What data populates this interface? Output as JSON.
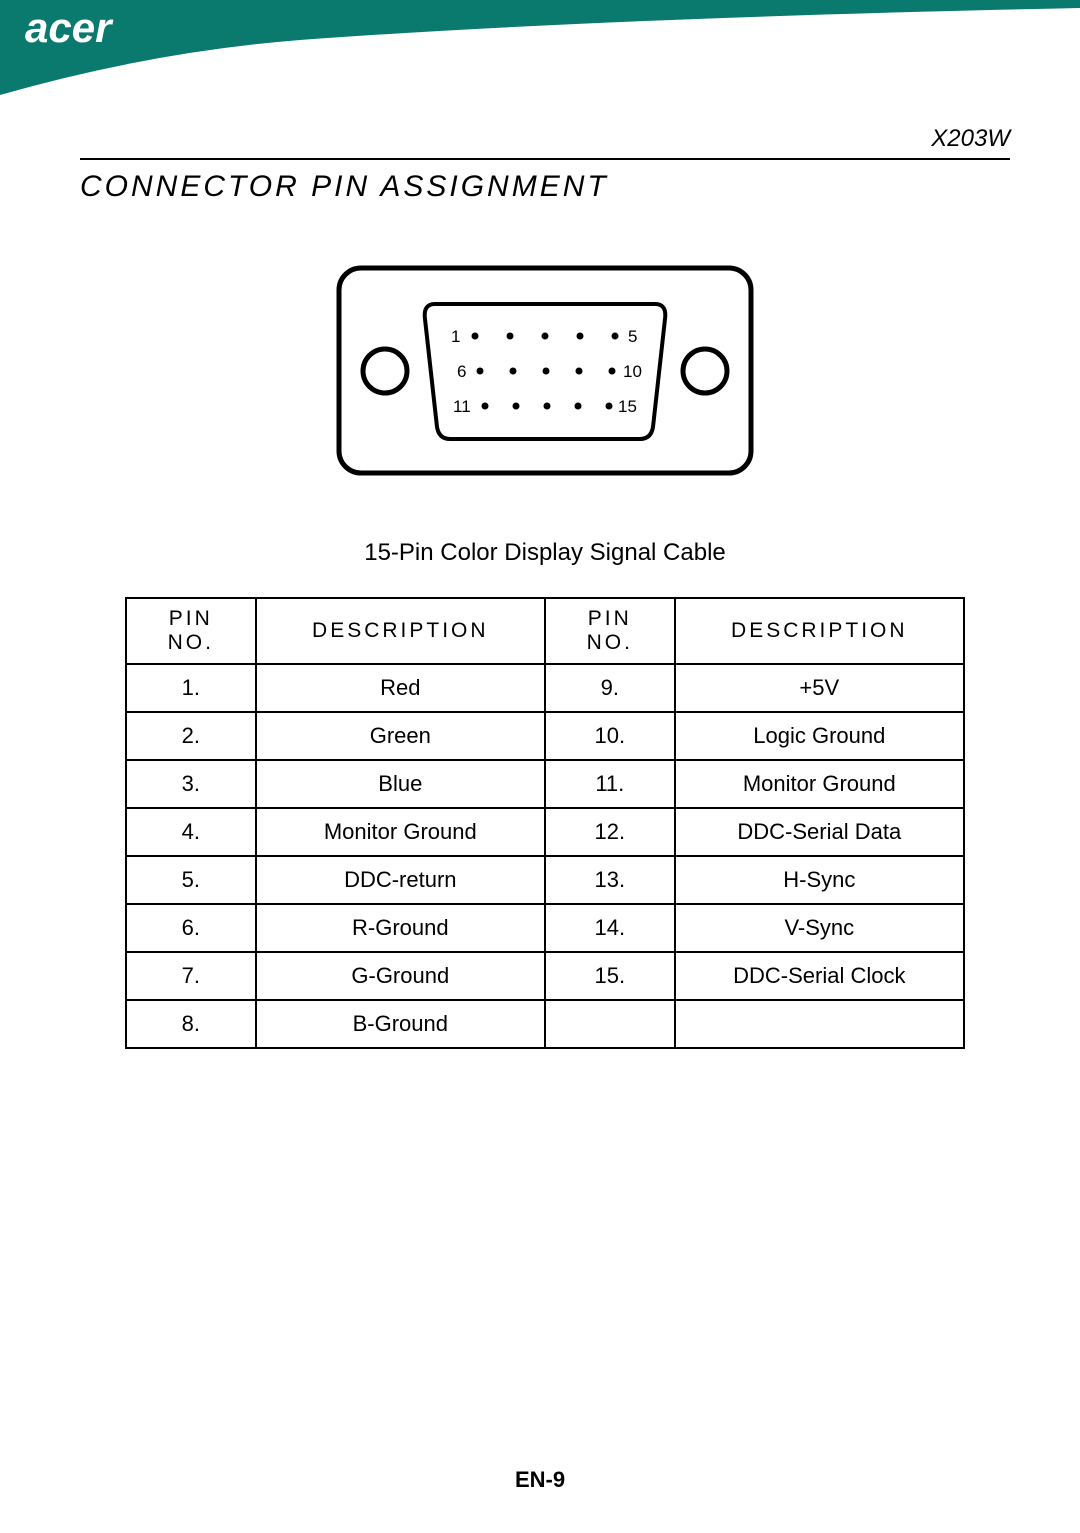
{
  "brand": "acer",
  "brand_color": "#0b7a6e",
  "model": "X203W",
  "section_title": "CONNECTOR PIN ASSIGNMENT",
  "connector": {
    "pin_labels": {
      "tl": "1",
      "tr": "5",
      "ml": "6",
      "mr": "10",
      "bl": "11",
      "br": "15"
    }
  },
  "cable_label": "15-Pin Color Display Signal Cable",
  "table": {
    "headers": [
      "PIN NO.",
      "DESCRIPTION",
      "PIN NO.",
      "DESCRIPTION"
    ],
    "rows": [
      [
        "1.",
        "Red",
        "9.",
        "+5V"
      ],
      [
        "2.",
        "Green",
        "10.",
        "Logic Ground"
      ],
      [
        "3.",
        "Blue",
        "11.",
        "Monitor Ground"
      ],
      [
        "4.",
        "Monitor Ground",
        "12.",
        "DDC-Serial Data"
      ],
      [
        "5.",
        "DDC-return",
        "13.",
        "H-Sync"
      ],
      [
        "6.",
        "R-Ground",
        "14.",
        "V-Sync"
      ],
      [
        "7.",
        "G-Ground",
        "15.",
        "DDC-Serial Clock"
      ],
      [
        "8.",
        "B-Ground",
        "",
        ""
      ]
    ]
  },
  "page_number": "EN-9",
  "colors": {
    "text": "#000000",
    "background": "#ffffff",
    "border": "#000000"
  }
}
